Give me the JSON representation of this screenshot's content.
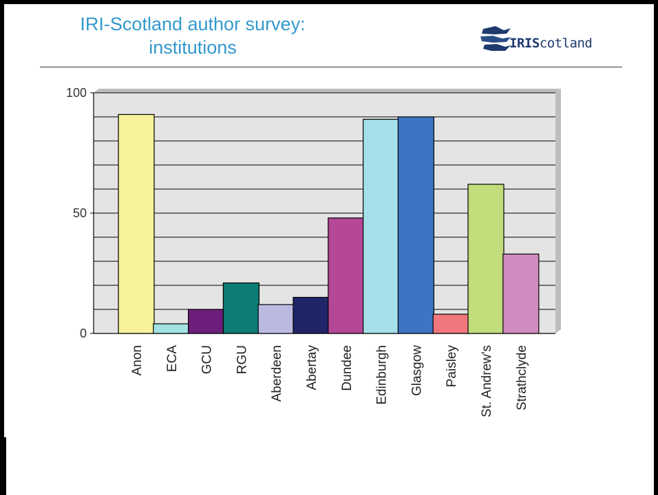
{
  "slide": {
    "title_line1": "IRI-Scotland author survey:",
    "title_line2": "institutions",
    "logo_text_bold": "IRIS",
    "logo_text_rest": "cotland",
    "logo_icon": "stacked-arrows-logo-icon"
  },
  "chart_data": {
    "type": "bar",
    "categories": [
      "Anon",
      "ECA",
      "GCU",
      "RGU",
      "Aberdeen",
      "Abertay",
      "Dundee",
      "Edinburgh",
      "Glasgow",
      "Paisley",
      "St. Andrew's",
      "Strathclyde"
    ],
    "values": [
      91,
      4,
      10,
      21,
      12,
      15,
      48,
      89,
      90,
      8,
      62,
      33
    ],
    "colors": [
      "#f6f39c",
      "#a3e2e2",
      "#6c1f7a",
      "#0c7c74",
      "#bcb9e1",
      "#1f2568",
      "#b54797",
      "#a5dfe8",
      "#3c75c2",
      "#f0787c",
      "#c2dd7c",
      "#d08cc0"
    ],
    "ylim": [
      0,
      100
    ],
    "yticks": [
      0,
      50,
      100
    ],
    "gridlines": [
      10,
      20,
      30,
      40,
      50,
      60,
      70,
      80,
      90,
      100
    ],
    "grid": true,
    "plot_background": "#e4e4e4",
    "title": "",
    "xlabel": "",
    "ylabel": ""
  }
}
